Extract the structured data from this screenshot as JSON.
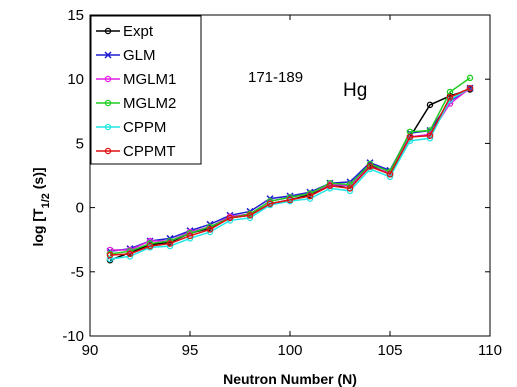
{
  "chart_data": {
    "type": "line",
    "xlabel": "Neutron Number (N)",
    "ylabel": "log [T",
    "ylabel_sub": "1/2",
    "ylabel_suffix": " (s)]",
    "xlim": [
      90,
      110
    ],
    "ylim": [
      -10,
      15
    ],
    "xticks": [
      90,
      95,
      100,
      105,
      110
    ],
    "yticks": [
      -10,
      -5,
      0,
      5,
      10,
      15
    ],
    "grid": false,
    "legend_position": "top-left",
    "annotations": {
      "range": "171-189",
      "element": "Hg"
    },
    "x": [
      91,
      92,
      93,
      94,
      95,
      96,
      97,
      98,
      99,
      100,
      101,
      102,
      103,
      104,
      105,
      106,
      107,
      108,
      109
    ],
    "series": [
      {
        "name": "Expt",
        "color": "#000000",
        "marker": "o",
        "values": [
          -4.1,
          -3.5,
          -2.9,
          -2.7,
          -2.0,
          -1.6,
          -0.8,
          -0.6,
          0.3,
          0.6,
          1.0,
          1.7,
          1.7,
          3.3,
          2.6,
          5.5,
          8.0,
          8.7,
          9.2
        ]
      },
      {
        "name": "GLM",
        "color": "#1f1fd0",
        "marker": "x",
        "values": [
          -3.4,
          -3.2,
          -2.6,
          -2.4,
          -1.8,
          -1.3,
          -0.6,
          -0.3,
          0.7,
          0.9,
          1.2,
          1.9,
          2.0,
          3.5,
          2.9,
          5.8,
          6.0,
          8.3,
          9.3
        ]
      },
      {
        "name": "MGLM1",
        "color": "#e020e0",
        "marker": "o",
        "values": [
          -3.3,
          -3.3,
          -2.6,
          -2.6,
          -1.9,
          -1.5,
          -0.7,
          -0.5,
          0.5,
          0.8,
          1.1,
          1.8,
          1.7,
          3.2,
          2.7,
          5.5,
          5.7,
          8.1,
          9.3
        ]
      },
      {
        "name": "MGLM2",
        "color": "#22cc22",
        "marker": "o",
        "values": [
          -3.6,
          -3.4,
          -2.8,
          -2.6,
          -2.0,
          -1.5,
          -0.8,
          -0.5,
          0.5,
          0.8,
          1.1,
          1.9,
          1.8,
          3.4,
          2.8,
          5.9,
          6.0,
          9.0,
          10.1
        ]
      },
      {
        "name": "CPPM",
        "color": "#22e6e6",
        "marker": "o",
        "values": [
          -4.0,
          -3.8,
          -3.1,
          -3.0,
          -2.4,
          -1.9,
          -1.0,
          -0.8,
          0.2,
          0.5,
          0.7,
          1.5,
          1.3,
          3.0,
          2.4,
          5.2,
          5.4,
          8.4,
          9.3
        ]
      },
      {
        "name": "CPPMT",
        "color": "#dd1111",
        "marker": "o",
        "values": [
          -3.7,
          -3.6,
          -3.0,
          -2.8,
          -2.2,
          -1.7,
          -0.8,
          -0.6,
          0.3,
          0.6,
          0.9,
          1.7,
          1.5,
          3.2,
          2.6,
          5.5,
          5.6,
          8.6,
          9.3
        ]
      }
    ]
  }
}
